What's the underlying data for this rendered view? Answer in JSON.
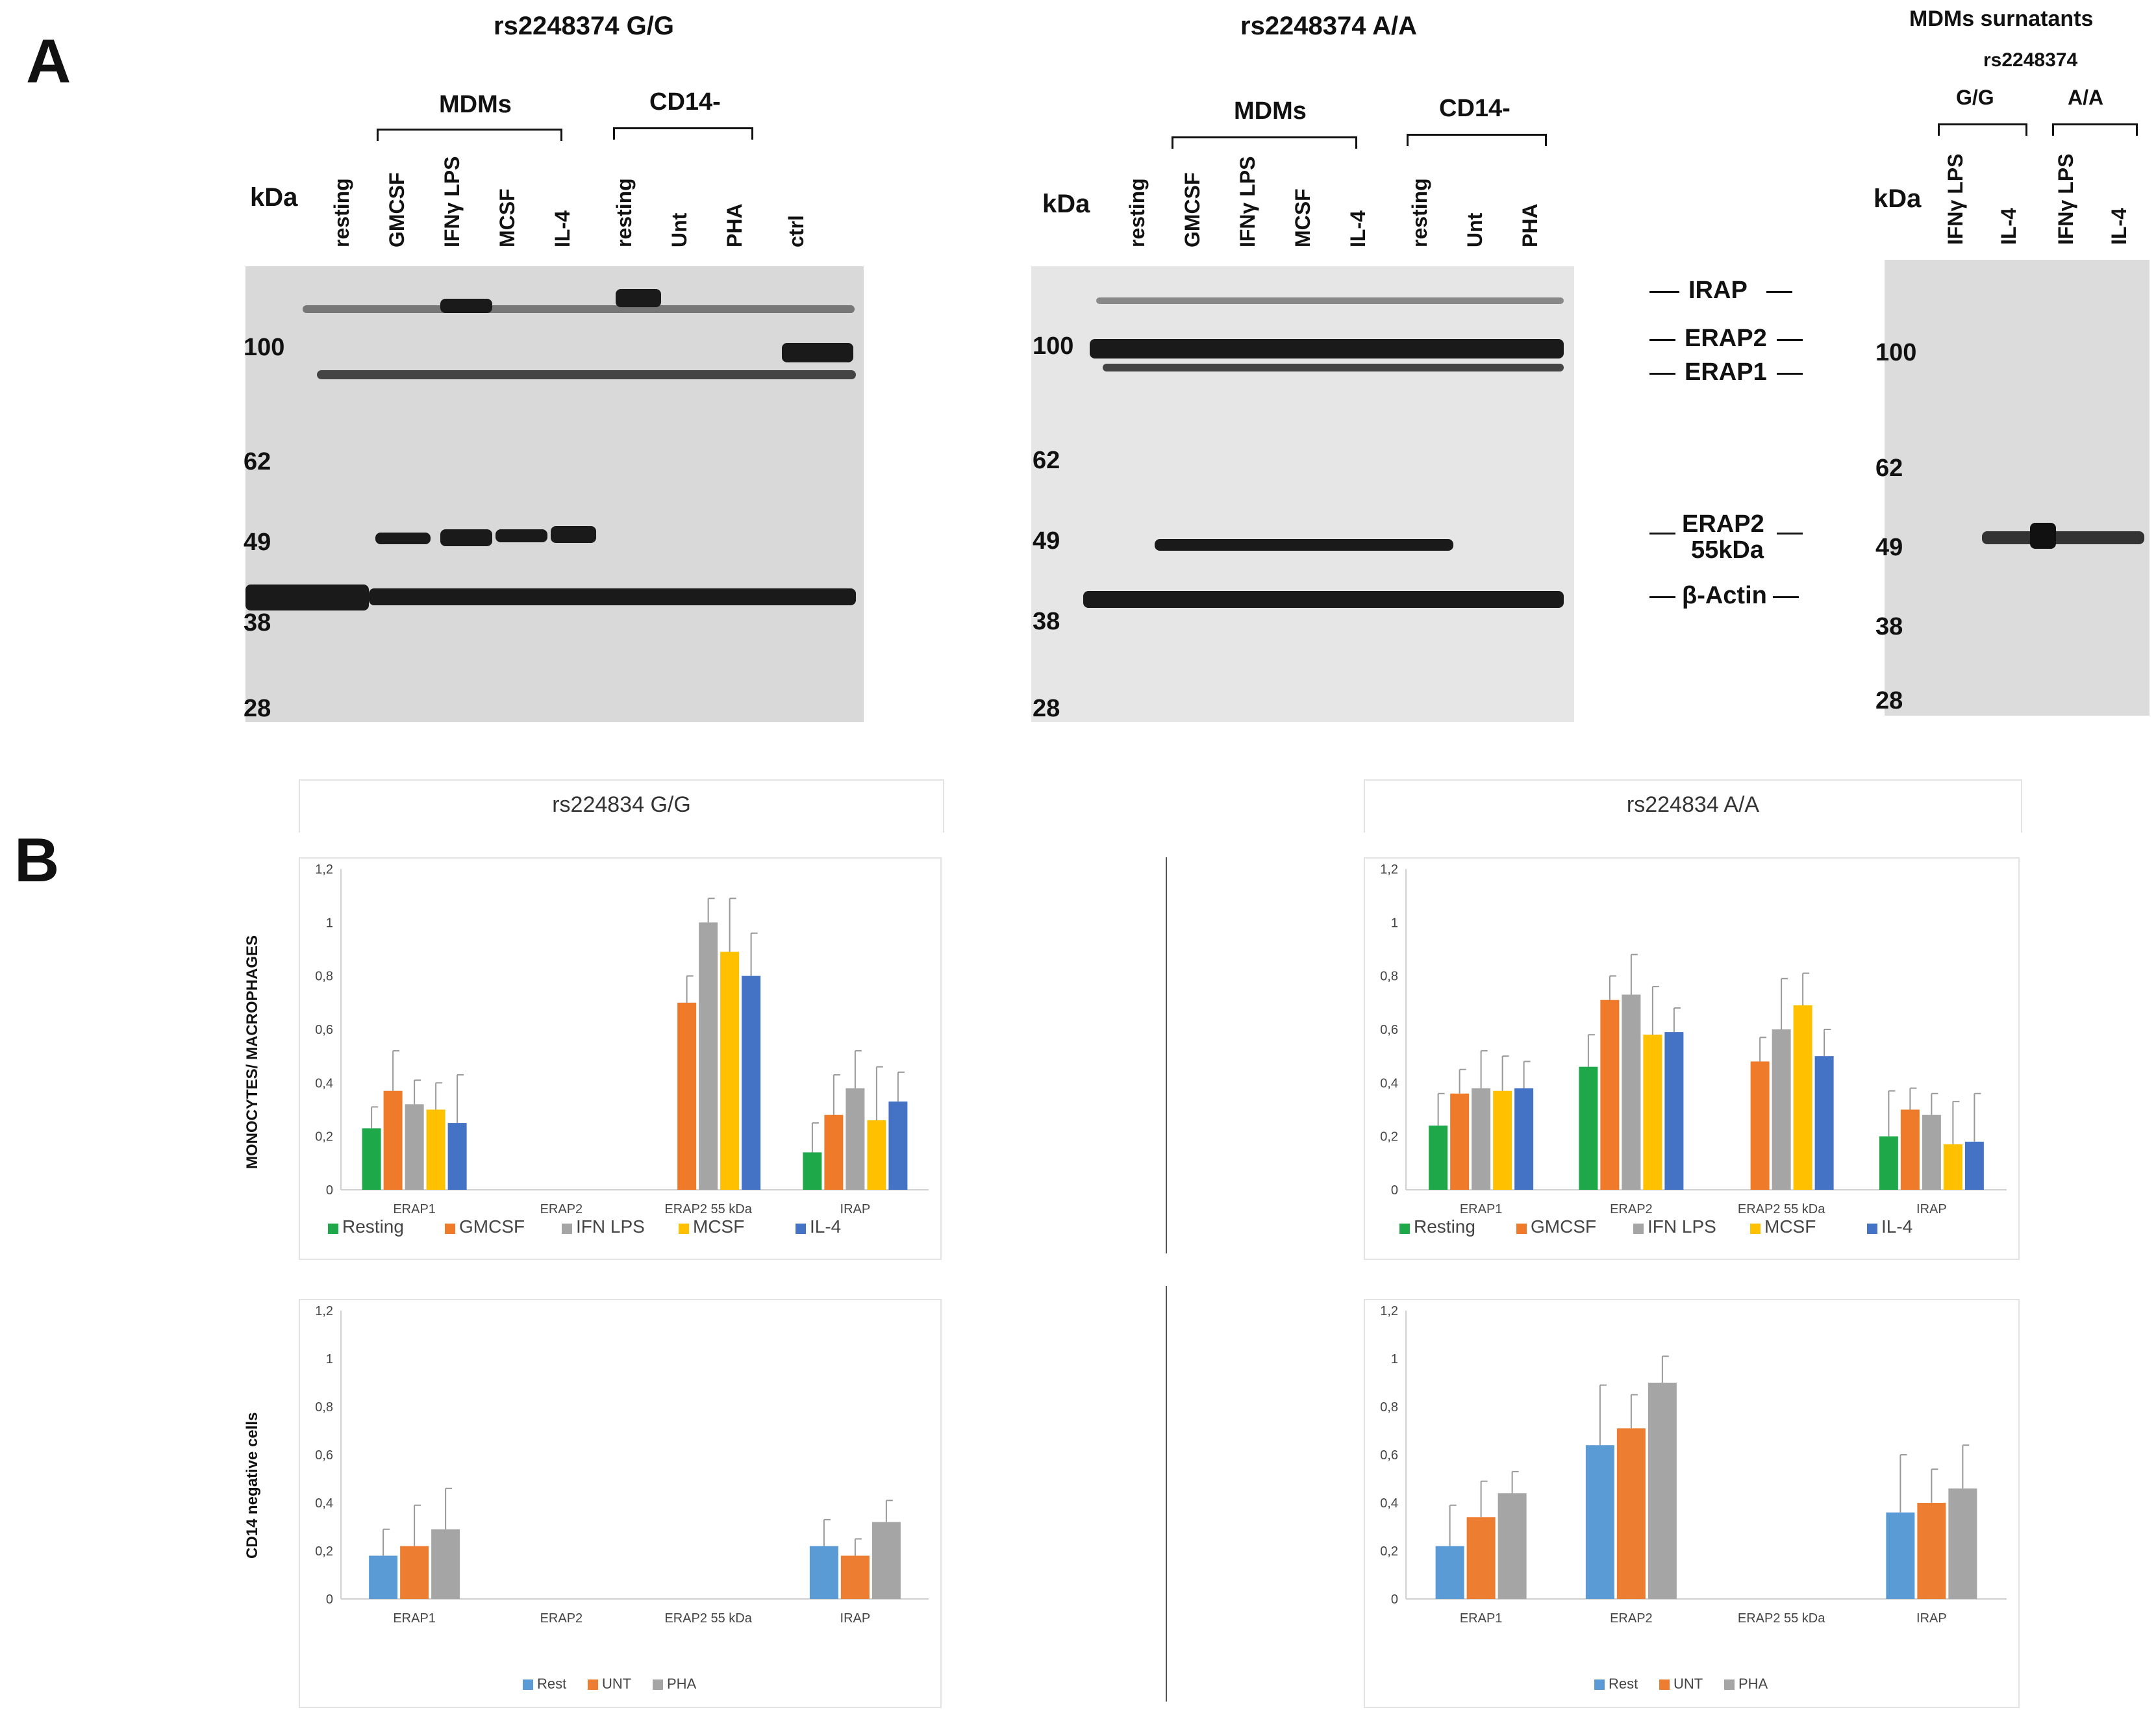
{
  "panelA": {
    "letter": "A",
    "blot1": {
      "title": "rs2248374 G/G",
      "group_mdm": "MDMs",
      "group_cd14": "CD14-",
      "kda": "kDa",
      "lanes": [
        "resting",
        "GMCSF",
        "IFNγ  LPS",
        "MCSF",
        "IL-4",
        "resting",
        "Unt",
        "PHA",
        "ctrl"
      ],
      "markers": [
        "100",
        "62",
        "49",
        "38",
        "28"
      ]
    },
    "blot2": {
      "title": "rs2248374 A/A",
      "group_mdm": "MDMs",
      "group_cd14": "CD14-",
      "kda": "kDa",
      "lanes": [
        "resting",
        "GMCSF",
        "IFNγ  LPS",
        "MCSF",
        "IL-4",
        "resting",
        "Unt",
        "PHA"
      ],
      "markers": [
        "100",
        "62",
        "49",
        "38",
        "28"
      ]
    },
    "band_labels": [
      "IRAP",
      "ERAP2",
      "ERAP1",
      "ERAP2\n55kDa",
      "β-Actin"
    ],
    "band_label_erap2_55_line1": "ERAP2",
    "band_label_erap2_55_line2": "55kDa",
    "blot3": {
      "title": "MDMs surnatants",
      "subtitle": "rs2248374",
      "group_gg": "G/G",
      "group_aa": "A/A",
      "kda": "kDa",
      "lanes": [
        "IFNγ  LPS",
        "IL-4",
        "IFNγ  LPS",
        "IL-4"
      ],
      "markers": [
        "100",
        "62",
        "49",
        "38",
        "28"
      ]
    }
  },
  "panelB": {
    "letter": "B",
    "col_gg_title": "rs224834 G/G",
    "col_aa_title": "rs224834 A/A",
    "row1_ylabel": "MONOCYTES/ MACROPHAGES",
    "row2_ylabel": "CD14 negative cells"
  },
  "chart_data": [
    {
      "id": "mono_gg",
      "type": "bar",
      "categories": [
        "ERAP1",
        "ERAP2",
        "ERAP2 55 kDa",
        "IRAP"
      ],
      "yticks": [
        "0",
        "0,2",
        "0,4",
        "0,6",
        "0,8",
        "1",
        "1,2"
      ],
      "ylim": [
        0,
        1.2
      ],
      "series": [
        {
          "name": "Resting",
          "color": "#1fa84a",
          "values": [
            0.23,
            0,
            0,
            0.14
          ],
          "errors": [
            0.08,
            0,
            0,
            0.11
          ]
        },
        {
          "name": "GMCSF",
          "color": "#ef7a2a",
          "values": [
            0.37,
            0,
            0.7,
            0.28
          ],
          "errors": [
            0.15,
            0,
            0.1,
            0.15
          ]
        },
        {
          "name": "IFN LPS",
          "color": "#a5a5a5",
          "values": [
            0.32,
            0,
            1.0,
            0.38
          ],
          "errors": [
            0.09,
            0,
            0.09,
            0.14
          ]
        },
        {
          "name": "MCSF",
          "color": "#ffc000",
          "values": [
            0.3,
            0,
            0.89,
            0.26
          ],
          "errors": [
            0.1,
            0,
            0.2,
            0.2
          ]
        },
        {
          "name": "IL-4",
          "color": "#4472c4",
          "values": [
            0.25,
            0,
            0.8,
            0.33
          ],
          "errors": [
            0.18,
            0,
            0.16,
            0.11
          ]
        }
      ]
    },
    {
      "id": "mono_aa",
      "type": "bar",
      "categories": [
        "ERAP1",
        "ERAP2",
        "ERAP2 55 kDa",
        "IRAP"
      ],
      "yticks": [
        "0",
        "0,2",
        "0,4",
        "0,6",
        "0,8",
        "1",
        "1,2"
      ],
      "ylim": [
        0,
        1.2
      ],
      "series": [
        {
          "name": "Resting",
          "color": "#1fa84a",
          "values": [
            0.24,
            0.46,
            0,
            0.2
          ],
          "errors": [
            0.12,
            0.12,
            0,
            0.17
          ]
        },
        {
          "name": "GMCSF",
          "color": "#ef7a2a",
          "values": [
            0.36,
            0.71,
            0.48,
            0.3
          ],
          "errors": [
            0.09,
            0.09,
            0.09,
            0.08
          ]
        },
        {
          "name": "IFN LPS",
          "color": "#a5a5a5",
          "values": [
            0.38,
            0.73,
            0.6,
            0.28
          ],
          "errors": [
            0.14,
            0.15,
            0.19,
            0.08
          ]
        },
        {
          "name": "MCSF",
          "color": "#ffc000",
          "values": [
            0.37,
            0.58,
            0.69,
            0.17
          ],
          "errors": [
            0.13,
            0.18,
            0.12,
            0.16
          ]
        },
        {
          "name": "IL-4",
          "color": "#4472c4",
          "values": [
            0.38,
            0.59,
            0.5,
            0.18
          ],
          "errors": [
            0.1,
            0.09,
            0.1,
            0.18
          ]
        }
      ]
    },
    {
      "id": "cd14_gg",
      "type": "bar",
      "categories": [
        "ERAP1",
        "ERAP2",
        "ERAP2 55 kDa",
        "IRAP"
      ],
      "yticks": [
        "0",
        "0,2",
        "0,4",
        "0,6",
        "0,8",
        "1",
        "1,2"
      ],
      "ylim": [
        0,
        1.2
      ],
      "series": [
        {
          "name": "Rest",
          "color": "#5b9bd5",
          "values": [
            0.18,
            0,
            0,
            0.22
          ],
          "errors": [
            0.11,
            0,
            0,
            0.11
          ]
        },
        {
          "name": "UNT",
          "color": "#ed7d31",
          "values": [
            0.22,
            0,
            0,
            0.18
          ],
          "errors": [
            0.17,
            0,
            0,
            0.07
          ]
        },
        {
          "name": "PHA",
          "color": "#a5a5a5",
          "values": [
            0.29,
            0,
            0,
            0.32
          ],
          "errors": [
            0.17,
            0,
            0,
            0.09
          ]
        }
      ]
    },
    {
      "id": "cd14_aa",
      "type": "bar",
      "categories": [
        "ERAP1",
        "ERAP2",
        "ERAP2 55 kDa",
        "IRAP"
      ],
      "yticks": [
        "0",
        "0,2",
        "0,4",
        "0,6",
        "0,8",
        "1",
        "1,2"
      ],
      "ylim": [
        0,
        1.2
      ],
      "series": [
        {
          "name": "Rest",
          "color": "#5b9bd5",
          "values": [
            0.22,
            0.64,
            0,
            0.36
          ],
          "errors": [
            0.17,
            0.25,
            0,
            0.24
          ]
        },
        {
          "name": "UNT",
          "color": "#ed7d31",
          "values": [
            0.34,
            0.71,
            0,
            0.4
          ],
          "errors": [
            0.15,
            0.14,
            0,
            0.14
          ]
        },
        {
          "name": "PHA",
          "color": "#a5a5a5",
          "values": [
            0.44,
            0.9,
            0,
            0.46
          ],
          "errors": [
            0.09,
            0.11,
            0,
            0.18
          ]
        }
      ]
    }
  ]
}
